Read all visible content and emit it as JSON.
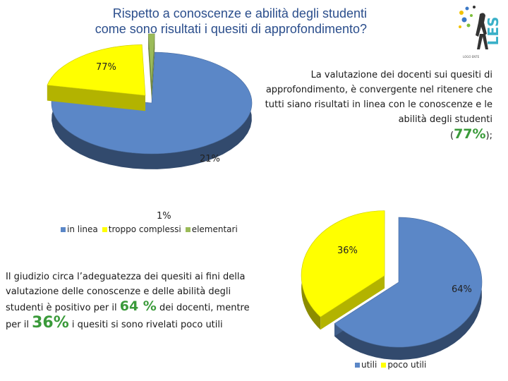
{
  "title": {
    "line1": "Rispetto a conoscenze e  abilità degli studenti",
    "line2": "come sono risultati i quesiti di approfondimento?"
  },
  "logo": {
    "text": "LES",
    "caption": "LOGO ENTE",
    "icon": "les-logo-icon"
  },
  "right_text": {
    "sentence": "La valutazione dei docenti sui quesiti di approfondimento, è convergente  nel ritenere che tutti siano risultati in linea con le conoscenze e le abilità degli studenti",
    "open": "(",
    "value": "77%",
    "close": ");"
  },
  "left_text": {
    "part1": "Il giudizio circa l’adeguatezza  dei quesiti ai fini della valutazione delle conoscenze e delle abilità degli studenti  è positivo per il",
    "value1": "64 %",
    "part2": "dei docenti, mentre per il",
    "value2": "36%",
    "part3": "i quesiti si sono rivelati poco utili"
  },
  "chart_data": [
    {
      "type": "pie",
      "categories": [
        "in linea",
        "troppo complessi",
        "elementari"
      ],
      "values": [
        77,
        21,
        1
      ],
      "data_labels": [
        "77%",
        "21%",
        "1%"
      ],
      "colors": [
        "#5b87c7",
        "#ffff00",
        "#9bbb59"
      ],
      "legend": "bottom",
      "exploded": true,
      "three_d": true
    },
    {
      "type": "pie",
      "categories": [
        "utili",
        "poco utili"
      ],
      "values": [
        64,
        36
      ],
      "data_labels": [
        "64%",
        "36%"
      ],
      "colors": [
        "#5b87c7",
        "#ffff00"
      ],
      "legend": "bottom",
      "exploded": true,
      "three_d": true
    }
  ]
}
